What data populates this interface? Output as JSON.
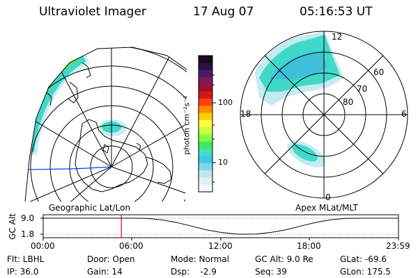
{
  "header": {
    "instrument": "Ultraviolet Imager",
    "date": "17 Aug 07",
    "time": "05:16:53 UT"
  },
  "colorbar": {
    "unit_label": "photon cm⁻²s⁻¹",
    "ticks": [
      "100",
      "10"
    ],
    "colors": [
      "#1a0a1a",
      "#2a1240",
      "#4b1a6a",
      "#7a1a5a",
      "#a01030",
      "#d01818",
      "#ff4010",
      "#ff8c00",
      "#ffd000",
      "#ffff40",
      "#c8ff40",
      "#80ff40",
      "#40e860",
      "#40e0c0",
      "#40c8e8",
      "#80d8e8",
      "#b8e8f0",
      "#e0f0f4",
      "#f4f8fa"
    ]
  },
  "geographic_panel": {
    "label": "Geographic Lat/Lon"
  },
  "apex_panel": {
    "label": "Apex MLat/MLT",
    "mlt_labels": {
      "top": "12",
      "left": "18",
      "right": "6",
      "bottom": "0"
    },
    "lat_labels": [
      "60",
      "70",
      "80"
    ]
  },
  "timeline": {
    "axis_title": "GC Alt",
    "y_labels": [
      "9.0",
      "1.8"
    ],
    "x_labels": [
      "00:00",
      "06:00",
      "12:00",
      "18:00",
      "23:59"
    ],
    "current_time_hours": 5.28,
    "altitude_curve_re": [
      [
        0,
        9.0
      ],
      [
        2,
        9.0
      ],
      [
        4,
        9.0
      ],
      [
        6,
        9.0
      ],
      [
        7,
        8.9
      ],
      [
        8,
        8.3
      ],
      [
        9,
        7.1
      ],
      [
        10,
        5.5
      ],
      [
        11,
        3.8
      ],
      [
        12,
        2.6
      ],
      [
        13,
        1.9
      ],
      [
        13.6,
        1.8
      ],
      [
        14.4,
        1.9
      ],
      [
        15.4,
        2.6
      ],
      [
        16.4,
        3.8
      ],
      [
        17.4,
        5.5
      ],
      [
        18.4,
        7.1
      ],
      [
        19.4,
        8.3
      ],
      [
        20.4,
        8.9
      ],
      [
        21.5,
        9.0
      ],
      [
        24,
        9.0
      ]
    ]
  },
  "info": {
    "filter": "Flt: LBHL",
    "ip": "IP: 36.0",
    "door": "Door: Open",
    "gain": "Gain: 14",
    "mode": "Mode: Normal",
    "dsp": "Dsp:    -2.9",
    "gc_alt": "GC Alt: 9.0 Re",
    "seq": "Seq: 39",
    "glat": "GLat: -69.6",
    "glon": "GLon: 175.5"
  }
}
